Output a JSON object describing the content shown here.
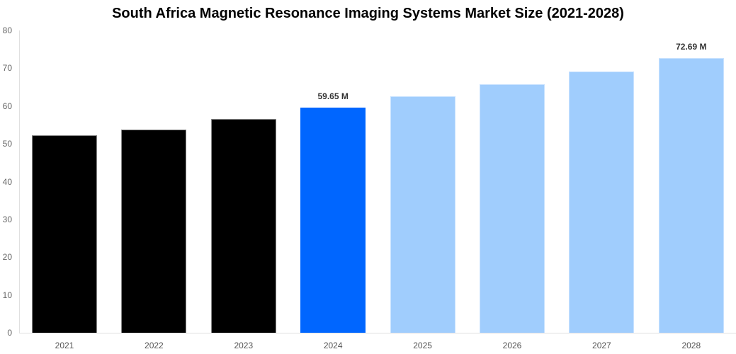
{
  "chart_data": {
    "type": "bar",
    "title": "South Africa Magnetic Resonance Imaging Systems Market Size (2021-2028)",
    "xlabel": "",
    "ylabel": "",
    "ylim": [
      0,
      80
    ],
    "yticks": [
      0,
      10,
      20,
      30,
      40,
      50,
      60,
      70,
      80
    ],
    "grid": false,
    "legend": null,
    "categories": [
      "2021",
      "2022",
      "2023",
      "2024",
      "2025",
      "2026",
      "2027",
      "2028"
    ],
    "values": [
      52.2,
      53.7,
      56.6,
      59.65,
      62.5,
      65.7,
      69.1,
      72.69
    ],
    "bar_types": [
      "historical",
      "historical",
      "historical",
      "current",
      "forecast",
      "forecast",
      "forecast",
      "forecast"
    ],
    "annotations": [
      {
        "category": "2024",
        "label": "59.65 M"
      },
      {
        "category": "2028",
        "label": "72.69 M"
      }
    ],
    "colors": {
      "historical": "#000000",
      "current": "#0066ff",
      "forecast": "#a0cdfd"
    }
  },
  "labels": {
    "title": "South Africa Magnetic Resonance Imaging Systems Market Size (2021-2028)",
    "yticks": [
      "0",
      "10",
      "20",
      "30",
      "40",
      "50",
      "60",
      "70",
      "80"
    ],
    "xticks": [
      "2021",
      "2022",
      "2023",
      "2024",
      "2025",
      "2026",
      "2027",
      "2028"
    ],
    "annot_2024": "59.65 M",
    "annot_2028": "72.69 M"
  }
}
